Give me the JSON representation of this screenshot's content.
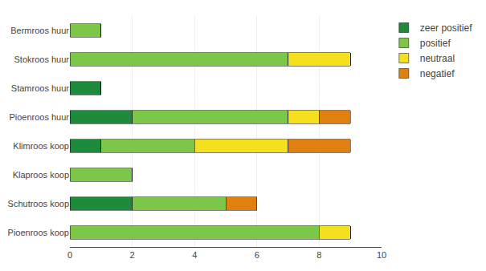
{
  "chart_data": {
    "type": "bar",
    "orientation": "horizontal",
    "stacked": true,
    "categories": [
      "Bermroos huur",
      "Stokroos huur",
      "Stamroos huur",
      "Pioenroos huur",
      "Klimroos koop",
      "Klaproos koop",
      "Schutroos koop",
      "Pioenroos koop"
    ],
    "series": [
      {
        "name": "zeer positief",
        "color": "#1e8a3c",
        "values": [
          0,
          0,
          1,
          2,
          1,
          0,
          2,
          0
        ]
      },
      {
        "name": "positief",
        "color": "#7dc748",
        "values": [
          1,
          7,
          0,
          5,
          3,
          2,
          3,
          8
        ]
      },
      {
        "name": "neutraal",
        "color": "#f5e020",
        "values": [
          0,
          2,
          0,
          1,
          3,
          0,
          0,
          1
        ]
      },
      {
        "name": "negatief",
        "color": "#e08010",
        "values": [
          0,
          0,
          0,
          1,
          2,
          0,
          1,
          0
        ]
      }
    ],
    "xlim": [
      0,
      10
    ],
    "xticks": [
      0,
      2,
      4,
      6,
      8,
      10
    ],
    "grid": true,
    "legend": "right"
  }
}
